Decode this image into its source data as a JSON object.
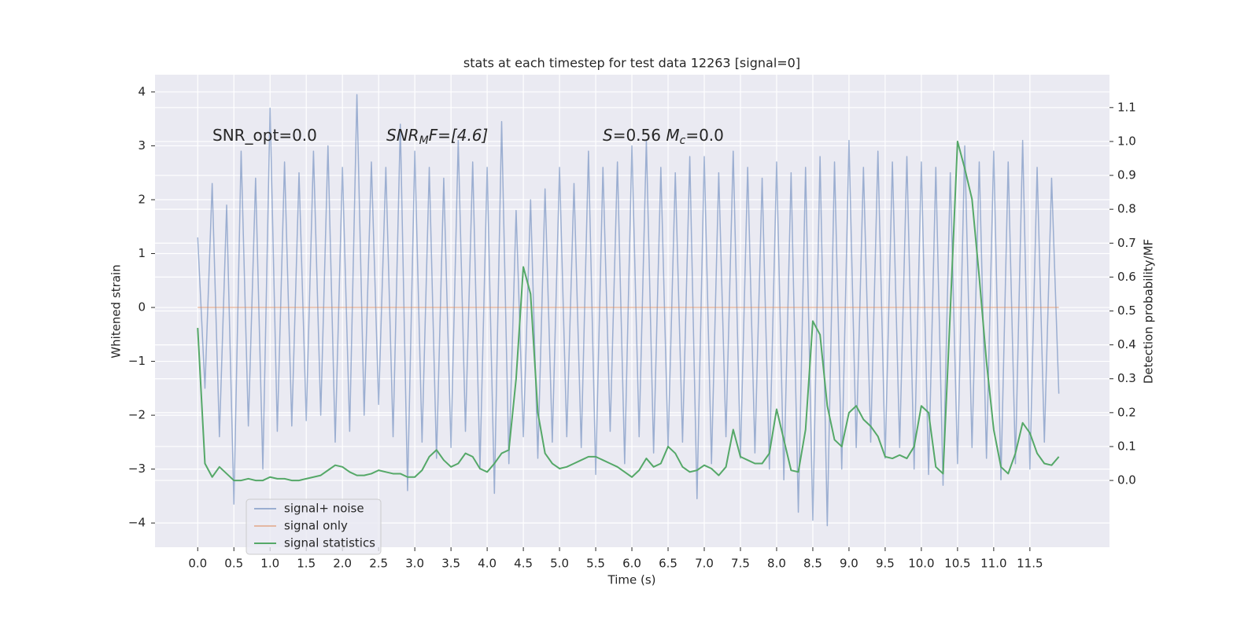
{
  "chart_data": {
    "type": "line",
    "title": "stats at each timestep for test data 12263 [signal=0]",
    "x_label": "Time (s)",
    "y_label": "Whitened strain",
    "y2_label": "Detection probability/MF",
    "annotations": [
      [
        "SNR_opt=0.0"
      ],
      [
        "SNR",
        "M",
        "F=[4.6]"
      ],
      [
        "S",
        "=0.56   ",
        "M",
        "c",
        "=0.0"
      ]
    ],
    "x": [
      0.0,
      0.1,
      0.2,
      0.3,
      0.4,
      0.5,
      0.6,
      0.7,
      0.8,
      0.9,
      1.0,
      1.1,
      1.2,
      1.3,
      1.4,
      1.5,
      1.6,
      1.7,
      1.8,
      1.9,
      2.0,
      2.1,
      2.2,
      2.3,
      2.4,
      2.5,
      2.6,
      2.7,
      2.8,
      2.9,
      3.0,
      3.1,
      3.2,
      3.3,
      3.4,
      3.5,
      3.6,
      3.7,
      3.8,
      3.9,
      4.0,
      4.1,
      4.2,
      4.3,
      4.4,
      4.5,
      4.6,
      4.7,
      4.8,
      4.9,
      5.0,
      5.1,
      5.2,
      5.3,
      5.4,
      5.5,
      5.6,
      5.7,
      5.8,
      5.9,
      6.0,
      6.1,
      6.2,
      6.3,
      6.4,
      6.5,
      6.6,
      6.7,
      6.8,
      6.9,
      7.0,
      7.1,
      7.2,
      7.3,
      7.4,
      7.5,
      7.6,
      7.7,
      7.8,
      7.9,
      8.0,
      8.1,
      8.2,
      8.3,
      8.4,
      8.5,
      8.6,
      8.7,
      8.8,
      8.9,
      9.0,
      9.1,
      9.2,
      9.3,
      9.4,
      9.5,
      9.6,
      9.7,
      9.8,
      9.9,
      10.0,
      10.1,
      10.2,
      10.3,
      10.4,
      10.5,
      10.6,
      10.7,
      10.8,
      10.9,
      11.0,
      11.1,
      11.2,
      11.3,
      11.4,
      11.5,
      11.6,
      11.7,
      11.8,
      11.9
    ],
    "series": [
      {
        "name": "signal+ noise",
        "color": "#4c72b0",
        "alpha": 0.5,
        "values": [
          1.3,
          -1.5,
          2.3,
          -2.4,
          1.9,
          -3.65,
          2.9,
          -2.2,
          2.4,
          -3.0,
          3.7,
          -2.3,
          2.7,
          -2.2,
          2.5,
          -2.1,
          2.9,
          -2.0,
          3.0,
          -2.5,
          2.6,
          -2.3,
          3.95,
          -2.0,
          2.7,
          -1.8,
          2.6,
          -2.4,
          3.4,
          -3.4,
          2.9,
          -2.5,
          2.6,
          -2.8,
          2.4,
          -2.6,
          3.1,
          -2.3,
          2.7,
          -3.0,
          2.6,
          -3.45,
          3.45,
          -2.9,
          1.8,
          -2.4,
          2.0,
          -2.8,
          2.2,
          -2.5,
          2.6,
          -2.4,
          2.3,
          -2.6,
          2.9,
          -3.1,
          2.6,
          -2.3,
          2.7,
          -2.9,
          3.0,
          -2.4,
          3.1,
          -2.7,
          2.6,
          -2.6,
          2.5,
          -2.5,
          2.8,
          -3.55,
          2.8,
          -2.9,
          2.5,
          -2.4,
          2.9,
          -2.8,
          2.6,
          -2.7,
          2.4,
          -3.0,
          2.7,
          -3.2,
          2.5,
          -3.8,
          2.6,
          -3.95,
          2.8,
          -4.05,
          2.7,
          -3.0,
          3.1,
          -2.6,
          2.6,
          -2.5,
          2.9,
          -2.8,
          2.7,
          -2.6,
          2.8,
          -3.0,
          2.7,
          -3.1,
          2.6,
          -3.3,
          2.5,
          -2.9,
          3.0,
          -2.6,
          2.7,
          -2.8,
          2.9,
          -3.2,
          2.7,
          -2.9,
          3.1,
          -3.0,
          2.6,
          -2.5,
          2.4,
          -1.6
        ]
      },
      {
        "name": "signal only",
        "color": "#dd8452",
        "alpha": 0.5,
        "x": [
          0.0,
          11.9
        ],
        "values": [
          0,
          0
        ]
      },
      {
        "name": "signal statistics",
        "color": "#55a868",
        "alpha": 1,
        "axis": "y2",
        "values": [
          0.45,
          0.05,
          0.01,
          0.04,
          0.02,
          0.0,
          0.0,
          0.005,
          0.0,
          0.0,
          0.01,
          0.005,
          0.005,
          0.0,
          0.0,
          0.005,
          0.01,
          0.015,
          0.03,
          0.045,
          0.04,
          0.025,
          0.015,
          0.015,
          0.02,
          0.03,
          0.025,
          0.02,
          0.02,
          0.01,
          0.01,
          0.03,
          0.07,
          0.09,
          0.06,
          0.04,
          0.05,
          0.08,
          0.07,
          0.035,
          0.025,
          0.05,
          0.08,
          0.09,
          0.3,
          0.63,
          0.55,
          0.2,
          0.08,
          0.05,
          0.035,
          0.04,
          0.05,
          0.06,
          0.07,
          0.07,
          0.06,
          0.05,
          0.04,
          0.025,
          0.01,
          0.03,
          0.065,
          0.04,
          0.05,
          0.1,
          0.08,
          0.04,
          0.025,
          0.03,
          0.045,
          0.035,
          0.015,
          0.04,
          0.15,
          0.07,
          0.06,
          0.05,
          0.05,
          0.08,
          0.21,
          0.12,
          0.03,
          0.025,
          0.15,
          0.47,
          0.43,
          0.22,
          0.12,
          0.1,
          0.2,
          0.22,
          0.18,
          0.16,
          0.13,
          0.07,
          0.065,
          0.075,
          0.065,
          0.1,
          0.22,
          0.2,
          0.04,
          0.02,
          0.5,
          1.0,
          0.92,
          0.83,
          0.6,
          0.35,
          0.15,
          0.04,
          0.02,
          0.08,
          0.17,
          0.14,
          0.08,
          0.05,
          0.045,
          0.07
        ]
      }
    ],
    "xlim": [
      -0.59,
      12.6
    ],
    "ylim": [
      -4.45,
      4.32
    ],
    "y2lim": [
      -0.197,
      1.197
    ],
    "xticks": [
      {
        "value": 0,
        "label": "0.0"
      },
      {
        "value": 0.5,
        "label": "0.5"
      },
      {
        "value": 1,
        "label": "1.0"
      },
      {
        "value": 1.5,
        "label": "1.5"
      },
      {
        "value": 2,
        "label": "2.0"
      },
      {
        "value": 2.5,
        "label": "2.5"
      },
      {
        "value": 3,
        "label": "3.0"
      },
      {
        "value": 3.5,
        "label": "3.5"
      },
      {
        "value": 4,
        "label": "4.0"
      },
      {
        "value": 4.5,
        "label": "4.5"
      },
      {
        "value": 5,
        "label": "5.0"
      },
      {
        "value": 5.5,
        "label": "5.5"
      },
      {
        "value": 6,
        "label": "6.0"
      },
      {
        "value": 6.5,
        "label": "6.5"
      },
      {
        "value": 7,
        "label": "7.0"
      },
      {
        "value": 7.5,
        "label": "7.5"
      },
      {
        "value": 8,
        "label": "8.0"
      },
      {
        "value": 8.5,
        "label": "8.5"
      },
      {
        "value": 9,
        "label": "9.0"
      },
      {
        "value": 9.5,
        "label": "9.5"
      },
      {
        "value": 10,
        "label": "10.0"
      },
      {
        "value": 10.5,
        "label": "10.5"
      },
      {
        "value": 11,
        "label": "11.0"
      },
      {
        "value": 11.5,
        "label": "11.5"
      }
    ],
    "yticks": [
      {
        "value": -4,
        "label": "−4"
      },
      {
        "value": -3,
        "label": "−3"
      },
      {
        "value": -2,
        "label": "−2"
      },
      {
        "value": -1,
        "label": "−1"
      },
      0,
      1,
      2,
      3,
      4
    ],
    "y2ticks": [
      {
        "value": 0,
        "label": "0.0"
      },
      {
        "value": 0.1,
        "label": "0.1"
      },
      {
        "value": 0.2,
        "label": "0.2"
      },
      {
        "value": 0.3,
        "label": "0.3"
      },
      {
        "value": 0.4,
        "label": "0.4"
      },
      {
        "value": 0.5,
        "label": "0.5"
      },
      {
        "value": 0.6,
        "label": "0.6"
      },
      {
        "value": 0.7,
        "label": "0.7"
      },
      {
        "value": 0.8,
        "label": "0.8"
      },
      {
        "value": 0.9,
        "label": "0.9"
      },
      {
        "value": 1,
        "label": "1.0"
      },
      {
        "value": 1.1,
        "label": "1.1"
      }
    ],
    "grid": true,
    "legend": "lower left"
  }
}
